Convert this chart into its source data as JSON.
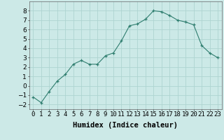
{
  "x": [
    0,
    1,
    2,
    3,
    4,
    5,
    6,
    7,
    8,
    9,
    10,
    11,
    12,
    13,
    14,
    15,
    16,
    17,
    18,
    19,
    20,
    21,
    22,
    23
  ],
  "y": [
    -1.2,
    -1.8,
    -0.6,
    0.5,
    1.2,
    2.3,
    2.7,
    2.3,
    2.3,
    3.2,
    3.5,
    4.8,
    6.4,
    6.6,
    7.1,
    8.0,
    7.9,
    7.5,
    7.0,
    6.8,
    6.5,
    4.3,
    3.5,
    3.0
  ],
  "xlabel": "Humidex (Indice chaleur)",
  "ylim": [
    -2.5,
    9.0
  ],
  "xlim": [
    -0.5,
    23.5
  ],
  "yticks": [
    -2,
    -1,
    0,
    1,
    2,
    3,
    4,
    5,
    6,
    7,
    8
  ],
  "xtick_labels": [
    "0",
    "1",
    "2",
    "3",
    "4",
    "5",
    "6",
    "7",
    "8",
    "9",
    "10",
    "11",
    "12",
    "13",
    "14",
    "15",
    "16",
    "17",
    "18",
    "19",
    "20",
    "21",
    "22",
    "23"
  ],
  "line_color": "#2e7d6e",
  "marker": "+",
  "bg_color": "#cce9e7",
  "grid_color": "#aed4d1",
  "label_fontsize": 7.5,
  "tick_fontsize": 6.5
}
